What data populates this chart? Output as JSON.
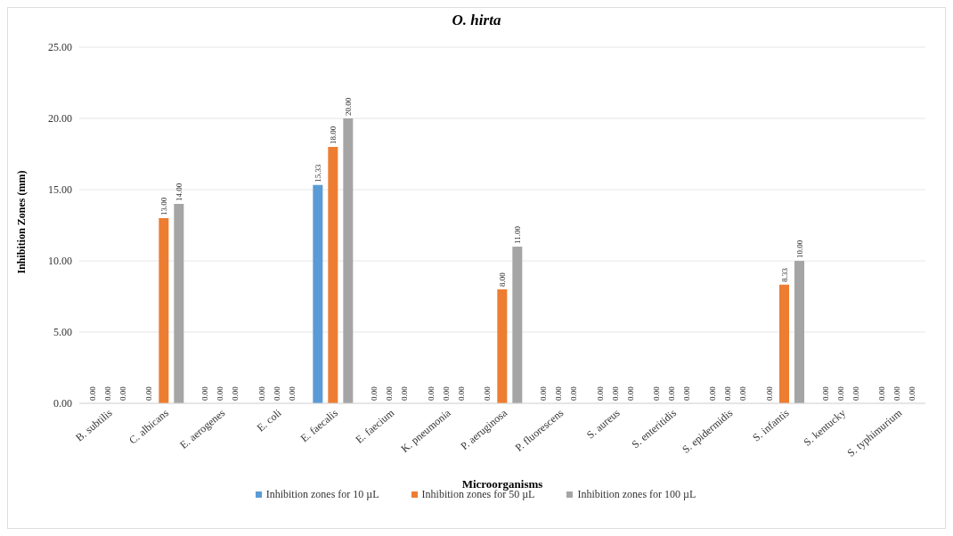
{
  "chart_data": {
    "type": "bar",
    "title": "O. hirta",
    "xlabel": "Microorganisms",
    "ylabel": "Inhibition Zones (mm)",
    "categories": [
      "B. subtilis",
      "C. albicans",
      "E. aerogenes",
      "E. coli",
      "E. faecalis",
      "E. faecium",
      "K. pneumonia",
      "P. aeruginosa",
      "P. fluorescens",
      "S. aureus",
      "S. enteritidis",
      "S. epidermidis",
      "S. infantis",
      "S. kentucky",
      "S. typhimurium"
    ],
    "series": [
      {
        "name": "Inhibition zones for 10 µL",
        "color": "#5b9bd5",
        "values": [
          0,
          0,
          0,
          0,
          15.33,
          0,
          0,
          0,
          0,
          0,
          0,
          0,
          0,
          0,
          0
        ],
        "value_labels": [
          "0.00",
          "0.00",
          "0.00",
          "0.00",
          "15.33",
          "0.00",
          "0.00",
          "0.00",
          "0.00",
          "0.00",
          "0.00",
          "0.00",
          "0.00",
          "0.00",
          "0.00"
        ]
      },
      {
        "name": "Inhibition zones for 50 µL",
        "color": "#ed7d31",
        "values": [
          0,
          13,
          0,
          0,
          18,
          0,
          0,
          8,
          0,
          0,
          0,
          0,
          8.33,
          0,
          0
        ],
        "value_labels": [
          "0.00",
          "13.00",
          "0.00",
          "0.00",
          "18.00",
          "0.00",
          "0.00",
          "8.00",
          "0.00",
          "0.00",
          "0.00",
          "0.00",
          "8.33",
          "0.00",
          "0.00"
        ]
      },
      {
        "name": "Inhibition zones for 100 µL",
        "color": "#a5a5a5",
        "values": [
          0,
          14,
          0,
          0,
          20,
          0,
          0,
          11,
          0,
          0,
          0,
          0,
          10,
          0,
          0
        ],
        "value_labels": [
          "0.00",
          "14.00",
          "0.00",
          "0.00",
          "20.00",
          "0.00",
          "0.00",
          "11.00",
          "0.00",
          "0.00",
          "0.00",
          "0.00",
          "10.00",
          "0.00",
          "0.00"
        ]
      }
    ],
    "ylim": [
      0,
      25
    ],
    "yticks": [
      {
        "value": 0,
        "label": "0.00"
      },
      {
        "value": 5,
        "label": "5.00"
      },
      {
        "value": 10,
        "label": "10.00"
      },
      {
        "value": 15,
        "label": "15.00"
      },
      {
        "value": 20,
        "label": "20.00"
      },
      {
        "value": 25,
        "label": "25.00"
      }
    ],
    "grid": "y",
    "legend": "bottom"
  }
}
